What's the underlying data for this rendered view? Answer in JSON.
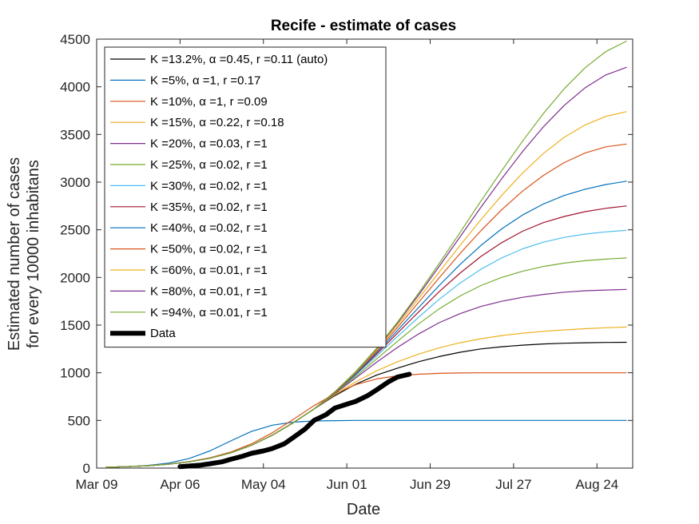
{
  "chart_data": {
    "type": "line",
    "title": "Recife - estimate of cases",
    "xlabel": "Date",
    "ylabel": [
      "Estimated number of cases",
      "for every 10000 inhabitans"
    ],
    "x_range_days": [
      0,
      180
    ],
    "x_tick_days": [
      0,
      28,
      56,
      84,
      112,
      140,
      168
    ],
    "x_tick_labels": [
      "Mar 09",
      "Apr 06",
      "May 04",
      "Jun 01",
      "Jun 29",
      "Jul 27",
      "Aug 24"
    ],
    "ylim": [
      0,
      4500
    ],
    "y_ticks": [
      0,
      500,
      1000,
      1500,
      2000,
      2500,
      3000,
      3500,
      4000,
      4500
    ],
    "grid": false,
    "legend_position": "top-left",
    "x_sample_days": [
      3,
      10,
      17,
      24,
      31,
      38,
      45,
      52,
      59,
      66,
      73,
      80,
      87,
      94,
      101,
      108,
      115,
      122,
      129,
      136,
      143,
      150,
      157,
      164,
      171,
      178
    ],
    "series": [
      {
        "name": "K =13.2%, α =0.45, r =0.11 (auto)",
        "color": "#000000",
        "width": 1.2,
        "values": [
          8,
          15,
          24,
          40,
          65,
          103,
          160,
          240,
          345,
          475,
          620,
          760,
          880,
          975,
          1048,
          1115,
          1170,
          1215,
          1250,
          1273,
          1290,
          1302,
          1310,
          1315,
          1318,
          1320
        ]
      },
      {
        "name": "K =5%, α =1, r =0.17",
        "color": "#0072BD",
        "width": 1.2,
        "values": [
          8,
          15,
          28,
          52,
          100,
          180,
          285,
          385,
          450,
          482,
          494,
          498,
          500,
          500,
          500,
          500,
          500,
          500,
          500,
          500,
          500,
          500,
          500,
          500,
          500,
          500
        ]
      },
      {
        "name": "K =10%, α =1, r =0.09",
        "color": "#D95319",
        "width": 1.2,
        "values": [
          8,
          15,
          25,
          42,
          68,
          108,
          168,
          255,
          370,
          510,
          655,
          780,
          875,
          935,
          968,
          985,
          994,
          998,
          1000,
          1000,
          1000,
          1000,
          1000,
          1000,
          1000,
          1000
        ]
      },
      {
        "name": "K =15%, α =0.22, r =0.18",
        "color": "#EDB120",
        "width": 1.2,
        "values": [
          8,
          15,
          24,
          40,
          65,
          103,
          160,
          240,
          345,
          475,
          620,
          770,
          905,
          1020,
          1115,
          1195,
          1262,
          1315,
          1357,
          1390,
          1415,
          1435,
          1450,
          1462,
          1472,
          1480
        ]
      },
      {
        "name": "K =20%, α =0.03, r =1",
        "color": "#7E2F8E",
        "width": 1.2,
        "values": [
          8,
          15,
          24,
          40,
          65,
          103,
          160,
          240,
          345,
          475,
          620,
          780,
          945,
          1110,
          1265,
          1405,
          1525,
          1620,
          1695,
          1750,
          1792,
          1822,
          1845,
          1860,
          1868,
          1875
        ]
      },
      {
        "name": "K =25%, α =0.02, r =1",
        "color": "#77AC30",
        "width": 1.2,
        "values": [
          8,
          15,
          24,
          40,
          65,
          103,
          160,
          240,
          345,
          475,
          620,
          785,
          960,
          1145,
          1330,
          1510,
          1670,
          1805,
          1915,
          2000,
          2065,
          2115,
          2150,
          2175,
          2192,
          2205
        ]
      },
      {
        "name": "K =30%, α =0.02, r =1",
        "color": "#4DBEEE",
        "width": 1.2,
        "values": [
          8,
          15,
          24,
          40,
          65,
          103,
          160,
          240,
          345,
          475,
          620,
          790,
          975,
          1175,
          1380,
          1580,
          1770,
          1940,
          2085,
          2205,
          2300,
          2370,
          2420,
          2455,
          2478,
          2495
        ]
      },
      {
        "name": "K =35%, α =0.02, r =1",
        "color": "#A2142F",
        "width": 1.2,
        "values": [
          8,
          15,
          24,
          40,
          65,
          103,
          160,
          240,
          345,
          475,
          620,
          790,
          985,
          1195,
          1415,
          1635,
          1850,
          2045,
          2220,
          2365,
          2485,
          2575,
          2640,
          2690,
          2725,
          2750
        ]
      },
      {
        "name": "K =40%, α =0.02, r =1",
        "color": "#0072BD",
        "width": 1.2,
        "values": [
          8,
          15,
          24,
          40,
          65,
          103,
          160,
          240,
          345,
          475,
          620,
          795,
          990,
          1210,
          1445,
          1680,
          1915,
          2135,
          2335,
          2510,
          2655,
          2770,
          2860,
          2925,
          2975,
          3010
        ]
      },
      {
        "name": "K =50%, α =0.02, r =1",
        "color": "#D95319",
        "width": 1.2,
        "values": [
          8,
          15,
          24,
          40,
          65,
          103,
          160,
          240,
          345,
          475,
          620,
          795,
          1000,
          1225,
          1475,
          1735,
          1995,
          2250,
          2490,
          2710,
          2905,
          3070,
          3205,
          3305,
          3370,
          3400
        ]
      },
      {
        "name": "K =60%, α =0.01, r =1",
        "color": "#EDB120",
        "width": 1.2,
        "values": [
          8,
          15,
          24,
          40,
          65,
          103,
          160,
          240,
          345,
          475,
          620,
          800,
          1005,
          1240,
          1500,
          1775,
          2055,
          2335,
          2605,
          2860,
          3095,
          3300,
          3470,
          3600,
          3690,
          3740
        ]
      },
      {
        "name": "K =80%, α =0.01, r =1",
        "color": "#7E2F8E",
        "width": 1.2,
        "values": [
          8,
          15,
          24,
          40,
          65,
          103,
          160,
          240,
          345,
          475,
          620,
          800,
          1010,
          1250,
          1520,
          1810,
          2115,
          2425,
          2735,
          3035,
          3320,
          3580,
          3805,
          3990,
          4125,
          4205
        ]
      },
      {
        "name": "K =94%, α =0.01, r =1",
        "color": "#77AC30",
        "width": 1.2,
        "values": [
          8,
          15,
          24,
          40,
          65,
          103,
          160,
          240,
          345,
          475,
          620,
          800,
          1012,
          1255,
          1530,
          1830,
          2145,
          2470,
          2800,
          3120,
          3430,
          3720,
          3980,
          4200,
          4370,
          4480
        ]
      }
    ],
    "data_series": {
      "name": "Data",
      "color": "#000000",
      "width": 6,
      "x": [
        28,
        31,
        35,
        38,
        42,
        45,
        49,
        52,
        56,
        59,
        63,
        66,
        70,
        73,
        77,
        80,
        84,
        87,
        91,
        94,
        98,
        101,
        105
      ],
      "values": [
        15,
        22,
        32,
        45,
        65,
        92,
        125,
        155,
        180,
        205,
        255,
        320,
        410,
        500,
        560,
        630,
        670,
        700,
        760,
        820,
        905,
        955,
        985
      ]
    }
  }
}
